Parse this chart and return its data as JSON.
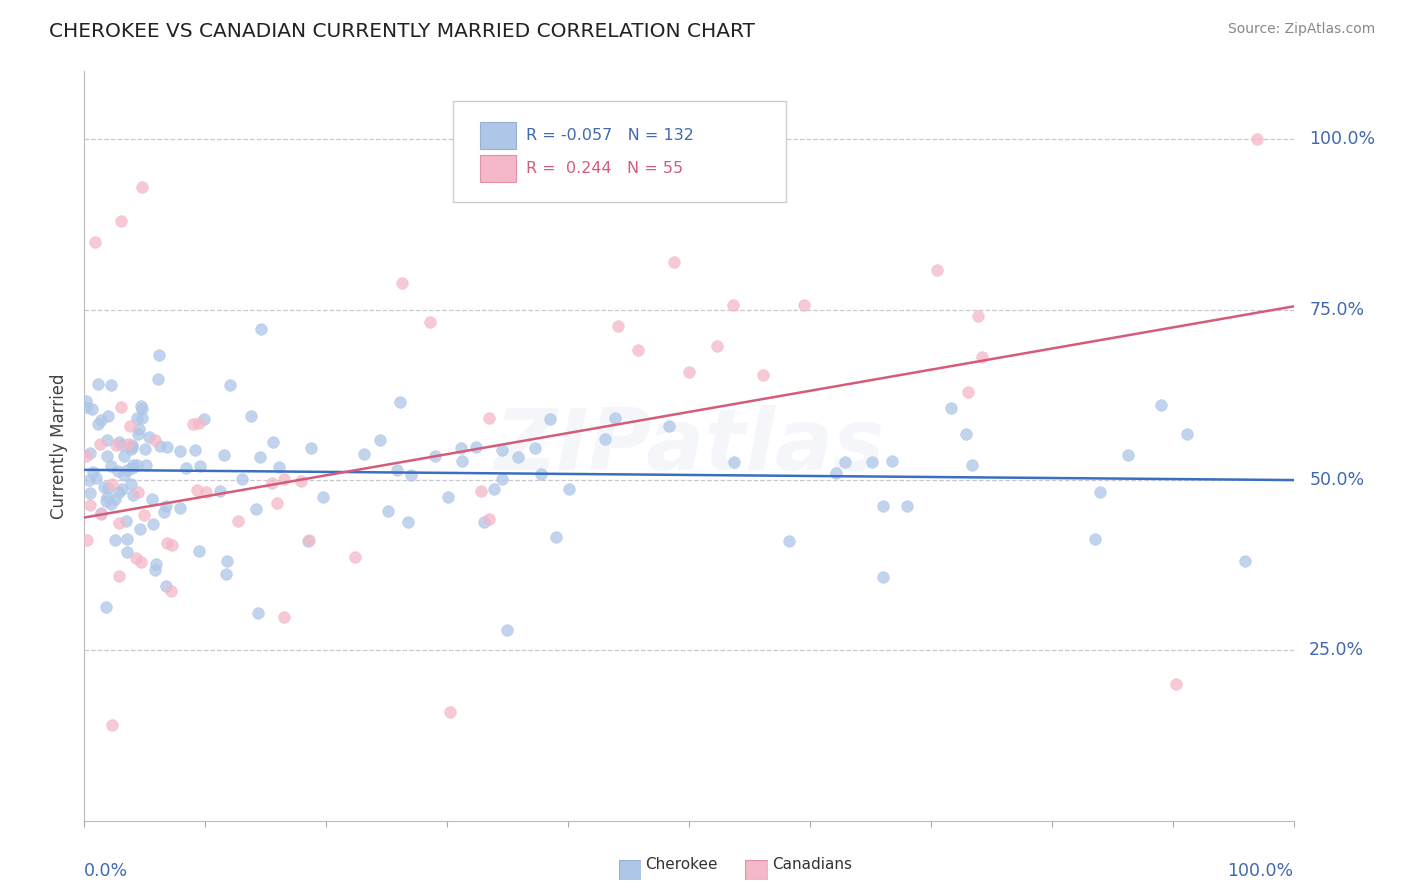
{
  "title": "CHEROKEE VS CANADIAN CURRENTLY MARRIED CORRELATION CHART",
  "source": "Source: ZipAtlas.com",
  "ylabel": "Currently Married",
  "ytick_values": [
    0.25,
    0.5,
    0.75,
    1.0
  ],
  "ytick_labels": [
    "25.0%",
    "50.0%",
    "75.0%",
    "100.0%"
  ],
  "legend_labels": [
    "Cherokee",
    "Canadians"
  ],
  "legend_r": [
    -0.057,
    0.244
  ],
  "legend_n": [
    132,
    55
  ],
  "blue_color": "#aec6e8",
  "pink_color": "#f4b8c8",
  "line_blue": "#3a6fbf",
  "line_pink": "#d45c7a",
  "text_color": "#4169b0",
  "grid_color": "#c8c8d0",
  "watermark_color": "#b0bcd8",
  "title_color": "#222222",
  "source_color": "#888888",
  "xlim": [
    0.0,
    1.0
  ],
  "ylim": [
    0.0,
    1.1
  ],
  "blue_line_y0": 0.515,
  "blue_line_y1": 0.5,
  "pink_line_y0": 0.445,
  "pink_line_y1": 0.755
}
